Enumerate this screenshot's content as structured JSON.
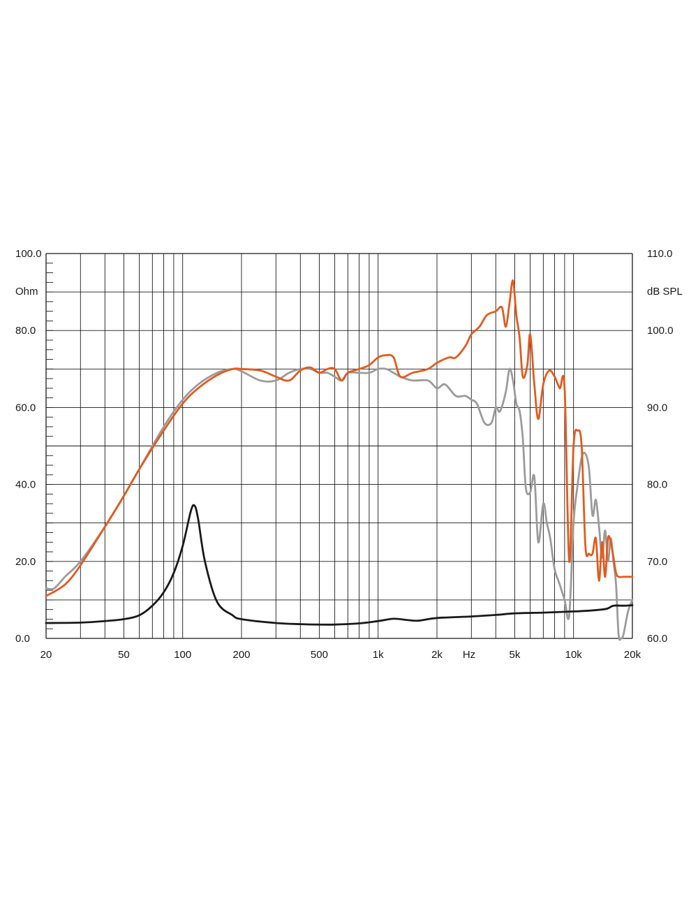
{
  "chart_data": {
    "type": "line",
    "x_scale": "log",
    "xlim": [
      20,
      20000
    ],
    "x_ticks": [
      20,
      50,
      100,
      200,
      500,
      1000,
      2000,
      5000,
      10000,
      20000
    ],
    "x_tick_labels": [
      "20",
      "50",
      "100",
      "200",
      "500",
      "1k",
      "2k",
      "5k",
      "10k",
      "20k"
    ],
    "x_unit_label": "Hz",
    "y_left": {
      "label": "Ohm",
      "lim": [
        0,
        100
      ],
      "ticks": [
        0,
        20,
        40,
        60,
        80,
        100
      ],
      "tick_labels": [
        "0.0",
        "20.0",
        "40.0",
        "60.0",
        "80.0",
        "100.0"
      ]
    },
    "y_right": {
      "label": "dB SPL",
      "lim": [
        60,
        110
      ],
      "ticks": [
        60,
        70,
        80,
        90,
        100,
        110
      ],
      "tick_labels": [
        "60.0",
        "70.0",
        "80.0",
        "90.0",
        "100.0",
        "110.0"
      ]
    },
    "grid": true,
    "series": [
      {
        "axis": "left",
        "color": "#1a1a1a",
        "x": [
          20,
          30,
          40,
          50,
          60,
          70,
          80,
          90,
          100,
          110,
          115,
          120,
          130,
          150,
          180,
          200,
          300,
          400,
          500,
          600,
          800,
          1000,
          1200,
          1400,
          1600,
          2000,
          3000,
          4000,
          5000,
          7000,
          10000,
          12000,
          14000,
          15000,
          16000,
          18000,
          20000
        ],
        "y": [
          4,
          4.1,
          4.5,
          5,
          6,
          8.5,
          12,
          17,
          24,
          33,
          34.5,
          31,
          20,
          9.5,
          6,
          5,
          4,
          3.7,
          3.6,
          3.6,
          3.9,
          4.5,
          5.1,
          4.8,
          4.6,
          5.3,
          5.7,
          6.1,
          6.5,
          6.7,
          7,
          7.2,
          7.5,
          7.8,
          8.5,
          8.5,
          8.6
        ]
      },
      {
        "axis": "right",
        "color": "#e35a1e",
        "x": [
          20,
          25,
          30,
          40,
          50,
          60,
          80,
          100,
          120,
          150,
          180,
          200,
          250,
          300,
          350,
          400,
          450,
          500,
          550,
          600,
          650,
          700,
          800,
          900,
          1000,
          1100,
          1200,
          1300,
          1500,
          1800,
          2000,
          2300,
          2500,
          2800,
          3000,
          3300,
          3600,
          4000,
          4300,
          4500,
          4700,
          4900,
          5100,
          5300,
          5500,
          5800,
          6000,
          6300,
          6600,
          7000,
          7500,
          8000,
          8500,
          9000,
          9500,
          10000,
          10500,
          11000,
          11500,
          12000,
          12500,
          13000,
          13500,
          14000,
          14500,
          15000,
          15500,
          16000,
          16500,
          17000,
          18000,
          19000,
          20000
        ],
        "y": [
          65.5,
          67,
          69.5,
          74.5,
          78.5,
          82,
          87,
          90.5,
          92.5,
          94.2,
          95,
          95,
          94.8,
          94,
          93.5,
          94.8,
          95.2,
          94.5,
          95,
          95,
          93.5,
          94.5,
          95,
          95.5,
          96.5,
          96.8,
          96.5,
          94,
          94.5,
          95,
          95.8,
          96.5,
          96.5,
          98,
          99.5,
          100.5,
          102,
          102.5,
          103,
          100.5,
          103.5,
          106.5,
          102,
          99,
          94,
          95.5,
          99.5,
          93,
          88.5,
          93,
          94.8,
          94,
          92.5,
          92.5,
          70,
          85,
          87,
          85,
          72,
          71,
          71,
          73,
          67.5,
          72.5,
          68,
          73,
          72.5,
          70.5,
          68.5,
          68,
          68,
          68,
          68
        ]
      },
      {
        "axis": "right",
        "color": "#9b9b9b",
        "x": [
          20,
          22,
          25,
          30,
          40,
          50,
          60,
          80,
          100,
          120,
          150,
          180,
          200,
          250,
          300,
          350,
          400,
          450,
          500,
          550,
          600,
          650,
          700,
          800,
          900,
          1000,
          1100,
          1200,
          1300,
          1500,
          1800,
          2000,
          2200,
          2500,
          2800,
          3000,
          3200,
          3500,
          3800,
          4000,
          4200,
          4500,
          4700,
          4900,
          5100,
          5300,
          5500,
          5700,
          6000,
          6300,
          6600,
          7000,
          7300,
          7600,
          8000,
          8500,
          9000,
          9500,
          10000,
          10500,
          11000,
          11500,
          12000,
          12500,
          13000,
          13500,
          14000,
          14500,
          15000,
          15500,
          16000,
          16500,
          17000,
          17500,
          18000,
          19000,
          20000
        ],
        "y": [
          66.5,
          66.5,
          68,
          70,
          74.5,
          78.5,
          82,
          87.5,
          91,
          93,
          94.5,
          95,
          94.7,
          93.5,
          93.5,
          94.5,
          95,
          95,
          94.5,
          94.5,
          94,
          93.5,
          94.5,
          94.5,
          94.5,
          95,
          95,
          94.5,
          94,
          93.5,
          93.5,
          92.5,
          93,
          91.5,
          91.5,
          91,
          90.5,
          88,
          88,
          90,
          89.5,
          92,
          95,
          93.5,
          90.5,
          89.5,
          86,
          79.5,
          79,
          81,
          72.5,
          77.5,
          75,
          73,
          69,
          67,
          65,
          63,
          75,
          80,
          83.5,
          84,
          82,
          76,
          78,
          74.5,
          70.5,
          74,
          70,
          73,
          70,
          67,
          60.5,
          60,
          60.5,
          63.5,
          65
        ]
      }
    ]
  }
}
